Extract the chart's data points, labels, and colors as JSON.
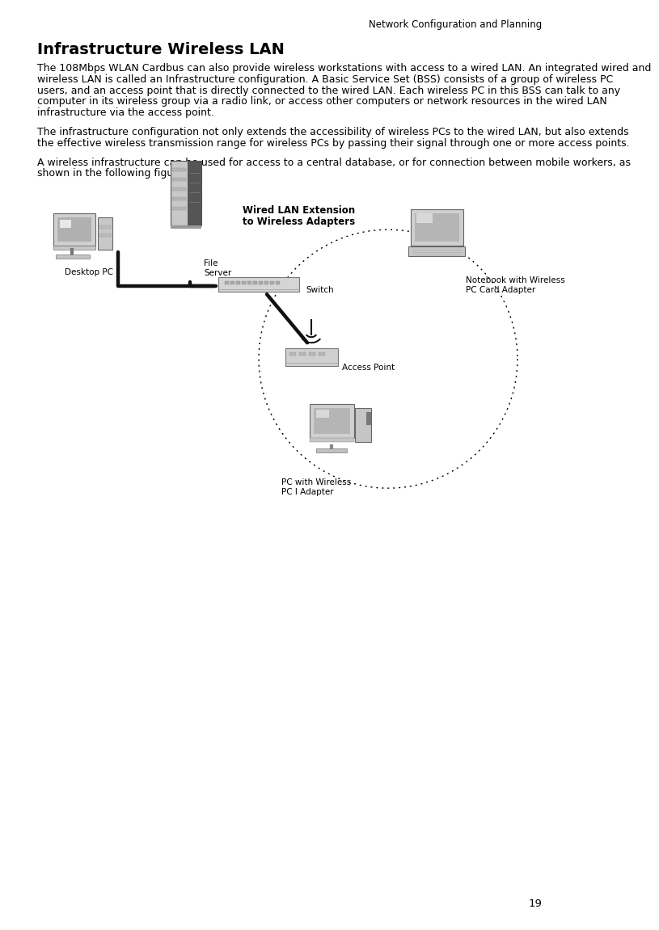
{
  "page_title": "Network Configuration and Planning",
  "page_number": "19",
  "section_title": "Infrastructure Wireless LAN",
  "paragraph1": "The 108Mbps WLAN Cardbus can also provide wireless workstations with access to a wired LAN. An integrated wired and wireless LAN is called an Infrastructure configuration. A Basic Service Set (BSS) consists of a group of wireless PC users, and an access point that is directly connected to the wired LAN. Each wireless PC in this BSS can talk to any computer in its wireless group via a radio link, or access other computers or network resources in the wired LAN infrastructure via the access point.",
  "paragraph2": "The infrastructure configuration not only extends the accessibility of wireless PCs to the wired LAN, but also extends the effective wireless transmission range for wireless PCs by passing their signal through one or more access points.",
  "paragraph3": "A wireless infrastructure can be used for access to a central database, or for connection between mobile workers, as shown in the following figure.",
  "label_wired_lan_1": "Wired LAN Extension",
  "label_wired_lan_2": "to Wireless Adapters",
  "label_file_server_1": "File",
  "label_file_server_2": "Server",
  "label_desktop_pc": "Desktop PC",
  "label_switch": "Switch",
  "label_notebook_1": "Notebook with Wireless",
  "label_notebook_2": "PC Card Adapter",
  "label_access_point": "Access Point",
  "label_pc_wireless_1": "PC with Wireless",
  "label_pc_wireless_2": "PC I Adapter",
  "bg_color": "#ffffff",
  "text_color": "#000000",
  "diagram_gray_light": "#d8d8d8",
  "diagram_gray_mid": "#b8b8b8",
  "diagram_gray_dark": "#888888",
  "diagram_black": "#222222"
}
